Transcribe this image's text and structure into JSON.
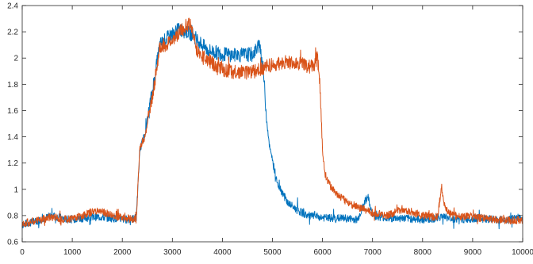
{
  "chart_data": {
    "type": "line",
    "title": "",
    "xlabel": "",
    "ylabel": "",
    "xlim": [
      0,
      10000
    ],
    "ylim": [
      0.6,
      2.4
    ],
    "grid": false,
    "legend": "none",
    "x_ticks": [
      0,
      1000,
      2000,
      3000,
      4000,
      5000,
      6000,
      7000,
      8000,
      9000,
      10000
    ],
    "x_tick_labels": [
      "0",
      "1000",
      "2000",
      "3000",
      "4000",
      "5000",
      "6000",
      "7000",
      "8000",
      "9000",
      "10000"
    ],
    "y_ticks": [
      0.6,
      0.8,
      1,
      1.2,
      1.4,
      1.6,
      1.8,
      2,
      2.2,
      2.4
    ],
    "y_tick_labels": [
      "0.6",
      "0.8",
      "1",
      "1.2",
      "1.4",
      "1.6",
      "1.8",
      "2",
      "2.2",
      "2.4"
    ],
    "series": [
      {
        "color": "#0072BD",
        "x": [
          0,
          300,
          600,
          900,
          1200,
          1500,
          1800,
          2100,
          2280,
          2350,
          2450,
          2600,
          2750,
          2950,
          3150,
          3400,
          3700,
          4000,
          4300,
          4600,
          4750,
          4820,
          4880,
          4950,
          5100,
          5300,
          5500,
          5700,
          5900,
          6100,
          6400,
          6700,
          6900,
          7000,
          7300,
          7600,
          8000,
          8300,
          8400,
          8500,
          8800,
          9100,
          9400,
          9700,
          10000
        ],
        "y": [
          0.73,
          0.76,
          0.8,
          0.77,
          0.78,
          0.79,
          0.78,
          0.77,
          0.78,
          1.3,
          1.42,
          1.75,
          2.1,
          2.17,
          2.22,
          2.18,
          2.06,
          2.03,
          2.02,
          2.03,
          2.1,
          1.9,
          1.55,
          1.3,
          1.05,
          0.9,
          0.84,
          0.8,
          0.79,
          0.78,
          0.78,
          0.77,
          0.95,
          0.8,
          0.78,
          0.78,
          0.77,
          0.78,
          0.8,
          0.78,
          0.77,
          0.78,
          0.77,
          0.77,
          0.78
        ]
      },
      {
        "color": "#D95319",
        "x": [
          0,
          300,
          600,
          900,
          1200,
          1500,
          1800,
          2100,
          2280,
          2350,
          2450,
          2600,
          2750,
          2950,
          3150,
          3350,
          3500,
          3800,
          4100,
          4400,
          4700,
          4900,
          5100,
          5300,
          5600,
          5800,
          5900,
          5950,
          6000,
          6050,
          6150,
          6300,
          6500,
          6800,
          7000,
          7300,
          7600,
          8000,
          8300,
          8380,
          8450,
          8600,
          8900,
          9200,
          9500,
          9800,
          10000
        ],
        "y": [
          0.74,
          0.76,
          0.79,
          0.77,
          0.8,
          0.84,
          0.8,
          0.78,
          0.77,
          1.32,
          1.4,
          1.7,
          2.08,
          2.12,
          2.2,
          2.27,
          2.05,
          1.96,
          1.9,
          1.89,
          1.9,
          1.94,
          1.95,
          1.97,
          1.95,
          1.93,
          2.0,
          1.8,
          1.3,
          1.12,
          1.03,
          0.96,
          0.9,
          0.85,
          0.82,
          0.8,
          0.85,
          0.8,
          0.79,
          1.02,
          0.85,
          0.8,
          0.79,
          0.78,
          0.77,
          0.76,
          0.77
        ]
      }
    ]
  }
}
